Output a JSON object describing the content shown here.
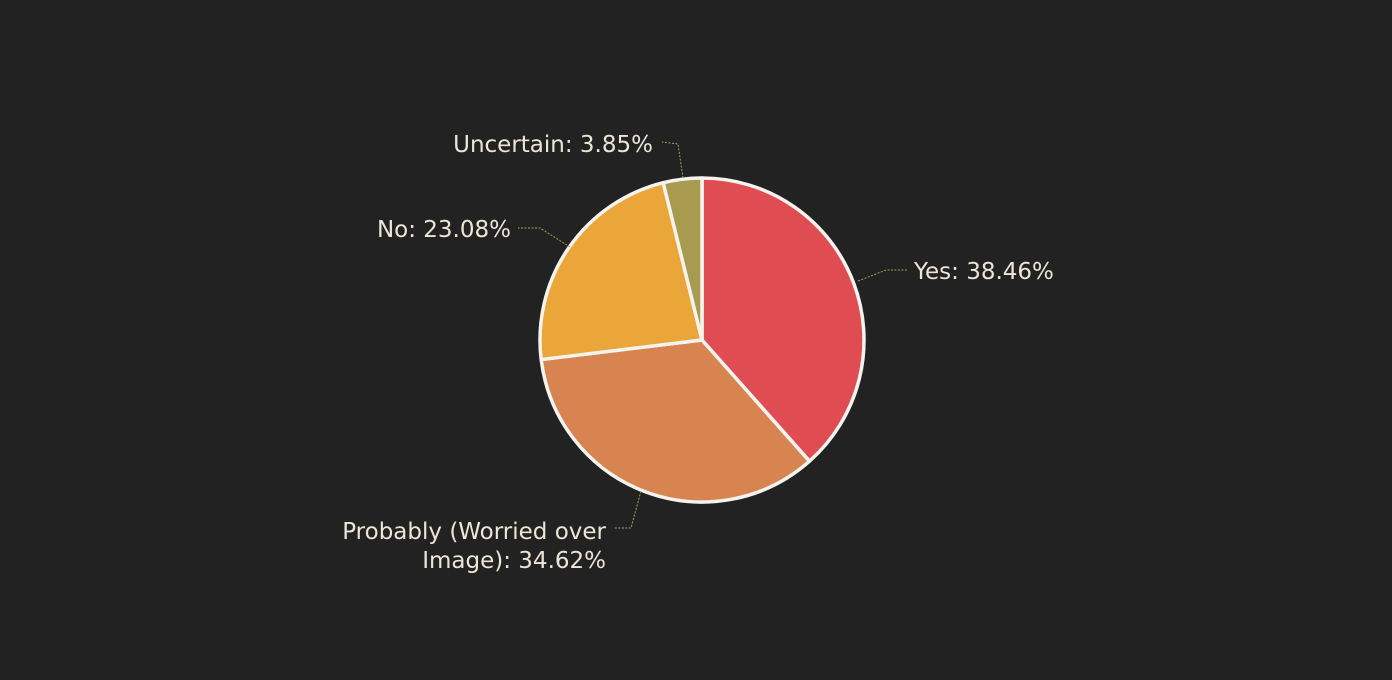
{
  "theme": {
    "background": "#222222",
    "slice_border": "#f5f3ee",
    "label_color": "#ece6d6",
    "leader_color": "#a8a25a"
  },
  "chart_data": {
    "type": "pie",
    "title": "",
    "direction": "clockwise",
    "start_angle_deg": 0,
    "sort": "none",
    "label_format": "{label}: {percent}%",
    "slices": [
      {
        "label": "Yes",
        "value": 38.46,
        "color": "#df4c52"
      },
      {
        "label": "Probably (Worried over Image)",
        "value": 34.62,
        "color": "#d88451"
      },
      {
        "label": "No",
        "value": 23.08,
        "color": "#eba63a"
      },
      {
        "label": "Uncertain",
        "value": 3.85,
        "color": "#a89a4e"
      }
    ],
    "label_texts": [
      [
        "Yes: 38.46%"
      ],
      [
        "Probably (Worried over",
        "Image): 34.62%"
      ],
      [
        "No: 23.08%"
      ],
      [
        "Uncertain: 3.85%"
      ]
    ]
  }
}
